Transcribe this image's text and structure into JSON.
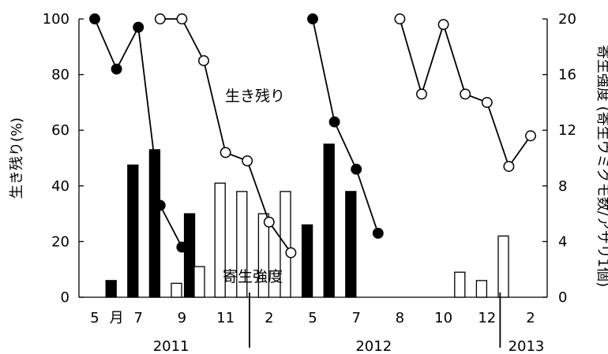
{
  "chart_data": {
    "type": "bar",
    "y_left": {
      "label": "生き残り(%)",
      "range": [
        0,
        100
      ],
      "ticks": [
        0,
        20,
        40,
        60,
        80,
        100
      ]
    },
    "y_right": {
      "label": "寄生強度 (寄生ウミグモ数/アサリ1個)",
      "range": [
        0,
        20
      ],
      "ticks": [
        0,
        4,
        8,
        12,
        16,
        20
      ]
    },
    "x_axis": {
      "month_ticks": [
        {
          "pos": 0,
          "label": "5"
        },
        {
          "pos": 1,
          "label": "月"
        },
        {
          "pos": 2,
          "label": "7"
        },
        {
          "pos": 4,
          "label": "9"
        },
        {
          "pos": 6,
          "label": "11"
        },
        {
          "pos": 8,
          "label": "2"
        },
        {
          "pos": 10,
          "label": "5"
        },
        {
          "pos": 12,
          "label": "7"
        },
        {
          "pos": 14,
          "label": "8"
        },
        {
          "pos": 16,
          "label": "10"
        },
        {
          "pos": 18,
          "label": "12"
        },
        {
          "pos": 20,
          "label": "2"
        }
      ],
      "years": [
        {
          "pos": 3.5,
          "label": "2011"
        },
        {
          "pos": 12.8,
          "label": "2012"
        },
        {
          "pos": 19.8,
          "label": "2013"
        }
      ],
      "year_dividers": [
        7.1,
        18.6
      ]
    },
    "annotations": {
      "survival": "生き残り",
      "intensity": "寄生強度"
    },
    "survival_series": [
      {
        "fill": "#000000",
        "points": [
          [
            0,
            100
          ],
          [
            1,
            82
          ],
          [
            2,
            97
          ],
          [
            3,
            33
          ],
          [
            4,
            18
          ]
        ]
      },
      {
        "fill": "#ffffff",
        "points": [
          [
            3,
            100
          ],
          [
            4,
            100
          ],
          [
            5,
            85
          ],
          [
            6,
            52
          ],
          [
            7,
            49
          ],
          [
            8,
            27
          ],
          [
            9,
            16
          ]
        ]
      },
      {
        "fill": "#000000",
        "points": [
          [
            10,
            100
          ],
          [
            11,
            63
          ],
          [
            12,
            46
          ],
          [
            13,
            23
          ]
        ]
      },
      {
        "fill": "#ffffff",
        "points": [
          [
            14,
            100
          ],
          [
            15,
            73
          ],
          [
            16,
            98
          ],
          [
            17,
            73
          ],
          [
            18,
            70
          ],
          [
            19,
            47
          ],
          [
            20,
            58
          ]
        ]
      }
    ],
    "intensity_bars": [
      {
        "x": 0.75,
        "value": 1.2,
        "fill": "#000000"
      },
      {
        "x": 1.75,
        "value": 9.5,
        "fill": "#000000"
      },
      {
        "x": 2.75,
        "value": 10.6,
        "fill": "#000000"
      },
      {
        "x": 3.75,
        "value": 1.0,
        "fill": "#ffffff"
      },
      {
        "x": 4.35,
        "value": 6.0,
        "fill": "#000000"
      },
      {
        "x": 4.8,
        "value": 2.2,
        "fill": "#ffffff"
      },
      {
        "x": 5.75,
        "value": 8.2,
        "fill": "#ffffff"
      },
      {
        "x": 6.75,
        "value": 7.6,
        "fill": "#ffffff"
      },
      {
        "x": 7.75,
        "value": 6.0,
        "fill": "#ffffff"
      },
      {
        "x": 8.75,
        "value": 7.6,
        "fill": "#ffffff"
      },
      {
        "x": 9.75,
        "value": 5.2,
        "fill": "#000000"
      },
      {
        "x": 10.75,
        "value": 11.0,
        "fill": "#000000"
      },
      {
        "x": 11.75,
        "value": 7.6,
        "fill": "#000000"
      },
      {
        "x": 16.75,
        "value": 1.8,
        "fill": "#ffffff"
      },
      {
        "x": 17.75,
        "value": 1.2,
        "fill": "#ffffff"
      },
      {
        "x": 18.75,
        "value": 4.4,
        "fill": "#ffffff"
      }
    ]
  }
}
